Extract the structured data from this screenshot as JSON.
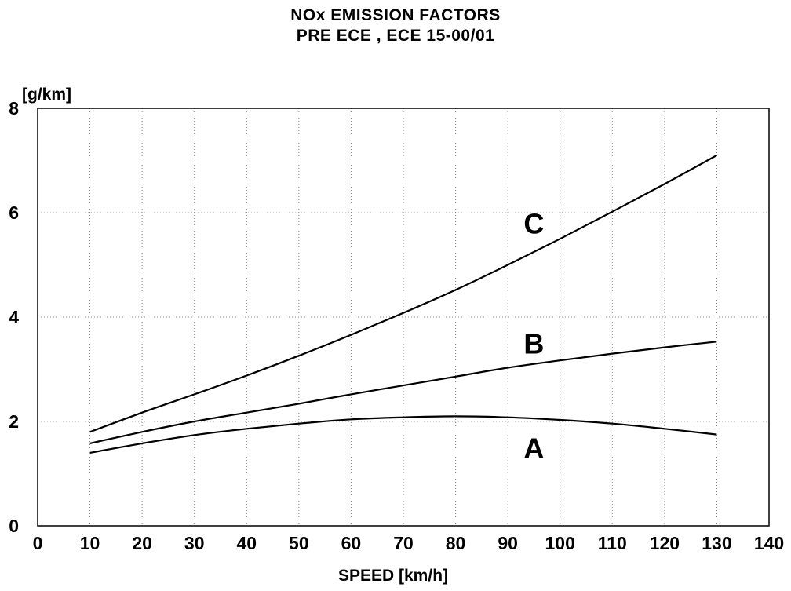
{
  "chart_data": {
    "type": "line",
    "title": "NOx EMISSION FACTORS",
    "subtitle": "PRE ECE , ECE  15-00/01",
    "ylabel": "[g/km]",
    "xlabel": "SPEED [km/h]",
    "xlim": [
      0,
      140
    ],
    "ylim": [
      0,
      8
    ],
    "xticks": [
      0,
      10,
      20,
      30,
      40,
      50,
      60,
      70,
      80,
      90,
      100,
      110,
      120,
      130,
      140
    ],
    "yticks": [
      0,
      2,
      4,
      6,
      8
    ],
    "grid": true,
    "x": [
      10,
      20,
      30,
      40,
      50,
      60,
      70,
      80,
      90,
      100,
      110,
      120,
      130
    ],
    "series": [
      {
        "name": "A",
        "values": [
          1.4,
          1.58,
          1.74,
          1.86,
          1.96,
          2.04,
          2.08,
          2.1,
          2.08,
          2.03,
          1.96,
          1.86,
          1.75
        ],
        "label_at": [
          95,
          1.5
        ]
      },
      {
        "name": "B",
        "values": [
          1.58,
          1.8,
          2.0,
          2.17,
          2.34,
          2.52,
          2.69,
          2.86,
          3.03,
          3.17,
          3.3,
          3.42,
          3.53
        ],
        "label_at": [
          95,
          3.5
        ]
      },
      {
        "name": "C",
        "values": [
          1.8,
          2.17,
          2.52,
          2.88,
          3.26,
          3.66,
          4.08,
          4.52,
          5.0,
          5.5,
          6.02,
          6.55,
          7.1
        ],
        "label_at": [
          95,
          5.8
        ]
      }
    ]
  }
}
